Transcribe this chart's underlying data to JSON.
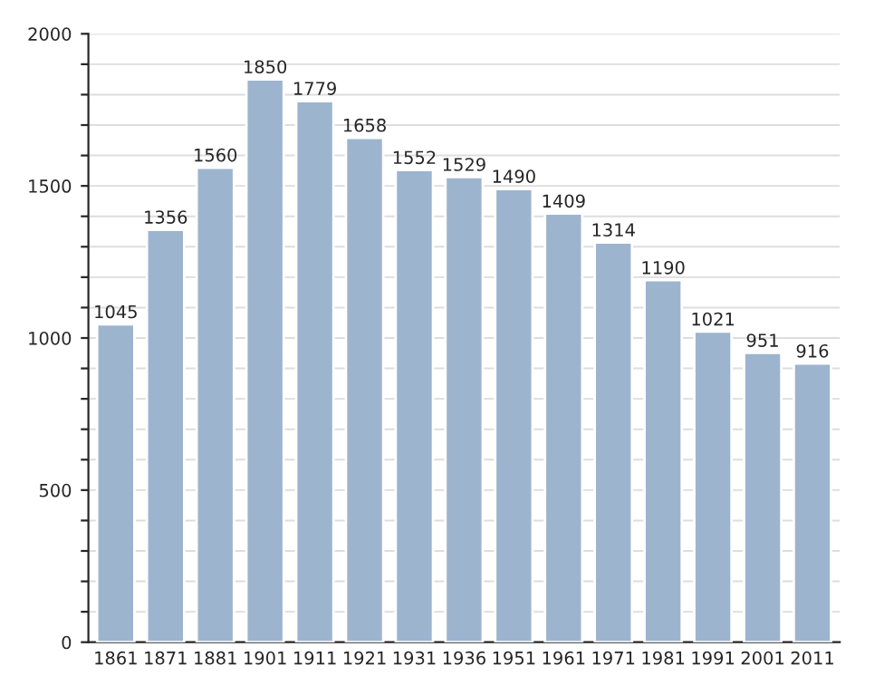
{
  "chart_data": {
    "type": "bar",
    "categories": [
      "1861",
      "1871",
      "1881",
      "1901",
      "1911",
      "1921",
      "1931",
      "1936",
      "1951",
      "1961",
      "1971",
      "1981",
      "1991",
      "2001",
      "2011"
    ],
    "values": [
      1045,
      1356,
      1560,
      1850,
      1779,
      1658,
      1552,
      1529,
      1490,
      1409,
      1314,
      1190,
      1021,
      951,
      916
    ],
    "color": "#9db4cf",
    "data_labels": true,
    "grid": "y",
    "ylim": [
      0,
      2000
    ],
    "yticks": [
      0,
      {
        "value": 100,
        "label": null
      },
      {
        "value": 200,
        "label": null
      },
      {
        "value": 300,
        "label": null
      },
      {
        "value": 400,
        "label": null
      },
      500,
      {
        "value": 600,
        "label": null
      },
      {
        "value": 700,
        "label": null
      },
      {
        "value": 800,
        "label": null
      },
      {
        "value": 900,
        "label": null
      },
      1000,
      {
        "value": 1100,
        "label": null
      },
      {
        "value": 1200,
        "label": null
      },
      {
        "value": 1300,
        "label": null
      },
      {
        "value": 1400,
        "label": null
      },
      1500,
      {
        "value": 1600,
        "label": null
      },
      {
        "value": 1700,
        "label": null
      },
      {
        "value": 1800,
        "label": null
      },
      {
        "value": 1900,
        "label": null
      },
      2000
    ]
  }
}
